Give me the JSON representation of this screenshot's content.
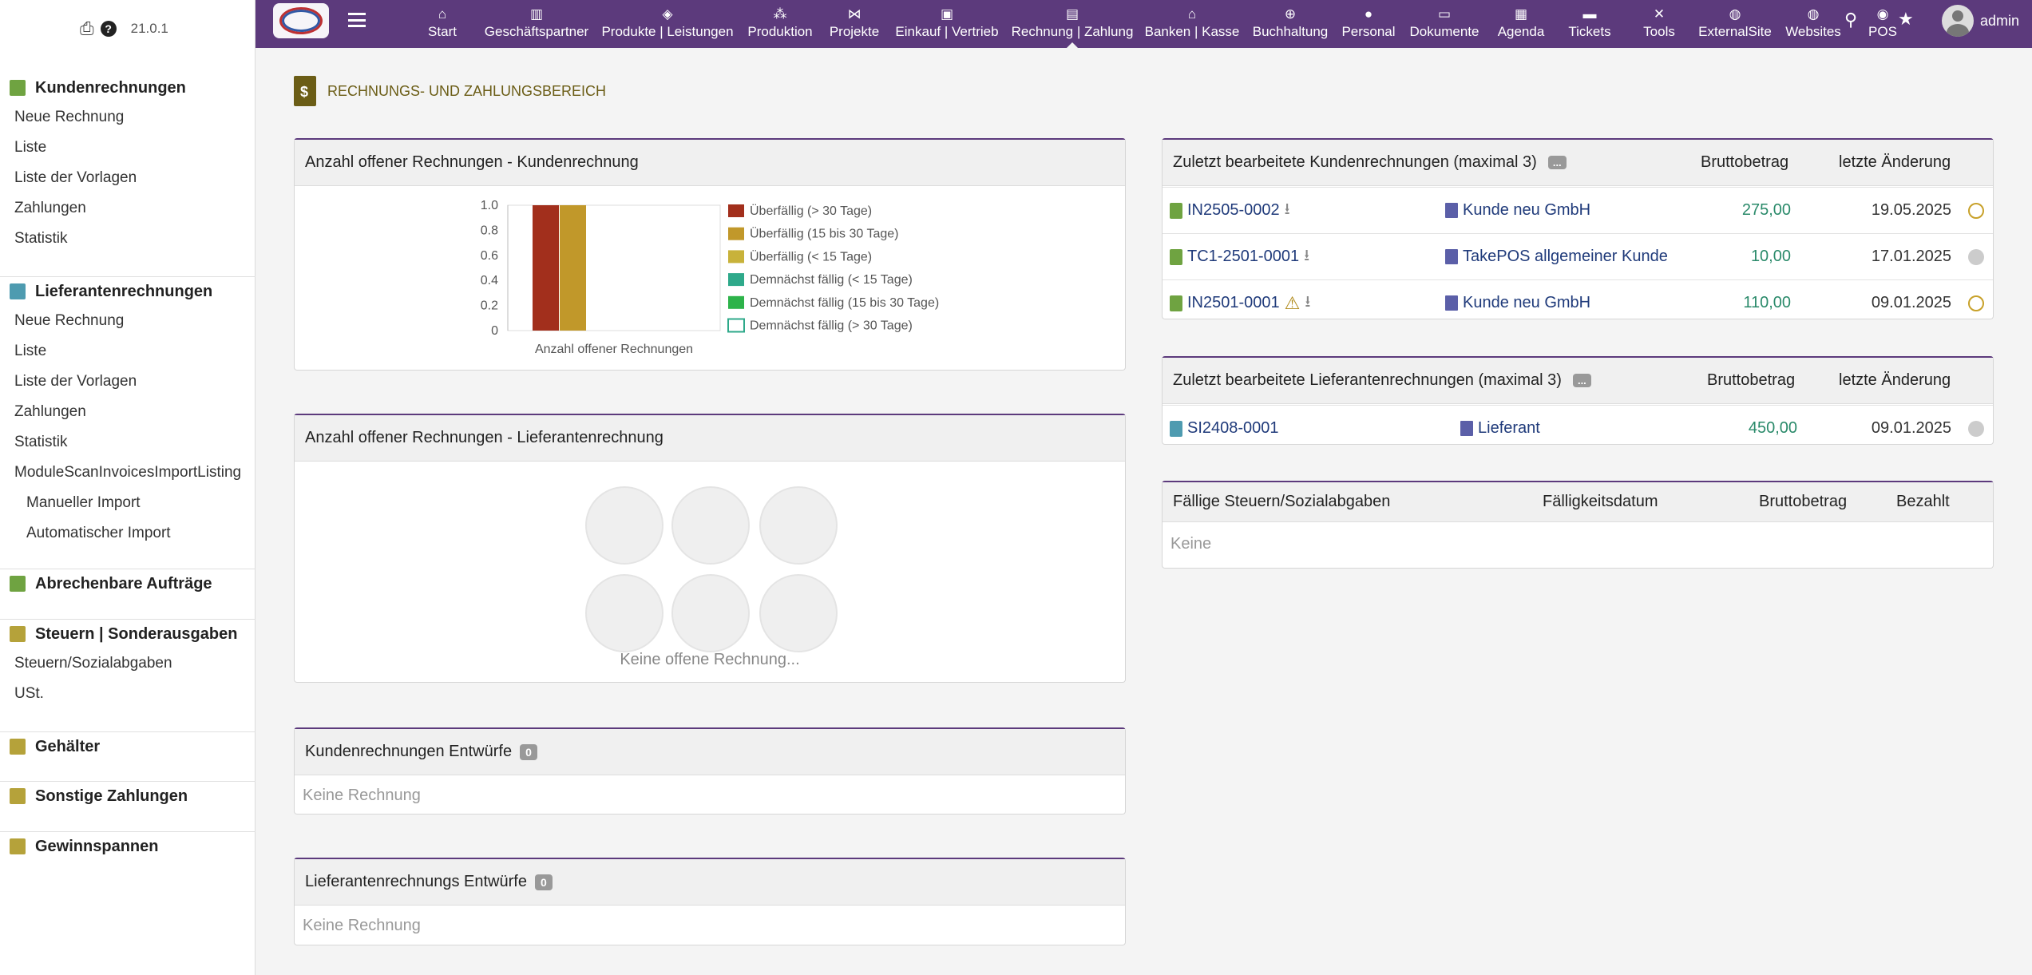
{
  "app": {
    "version": "21.0.1",
    "user": "admin"
  },
  "colors": {
    "topbar": "#5c3a7c",
    "accent": "#6b5d16",
    "amount": "#2a8a6a"
  },
  "topnav": [
    {
      "label": "Start",
      "icon": "home-icon",
      "glyph": "⌂"
    },
    {
      "label": "Geschäftspartner",
      "icon": "building-icon",
      "glyph": "▥"
    },
    {
      "label": "Produkte | Leistungen",
      "icon": "cube-icon",
      "glyph": "◈"
    },
    {
      "label": "Produktion",
      "icon": "cubes-icon",
      "glyph": "⁂"
    },
    {
      "label": "Projekte",
      "icon": "project-diagram-icon",
      "glyph": "⋈"
    },
    {
      "label": "Einkauf | Vertrieb",
      "icon": "suitcase-icon",
      "glyph": "▣"
    },
    {
      "label": "Rechnung | Zahlung",
      "icon": "invoice-icon",
      "glyph": "▤"
    },
    {
      "label": "Banken | Kasse",
      "icon": "bank-icon",
      "glyph": "⌂"
    },
    {
      "label": "Buchhaltung",
      "icon": "search-dollar-icon",
      "glyph": "⊕"
    },
    {
      "label": "Personal",
      "icon": "user-icon",
      "glyph": "●"
    },
    {
      "label": "Dokumente",
      "icon": "folder-icon",
      "glyph": "▭"
    },
    {
      "label": "Agenda",
      "icon": "calendar-icon",
      "glyph": "▦"
    },
    {
      "label": "Tickets",
      "icon": "ticket-icon",
      "glyph": "▬"
    },
    {
      "label": "Tools",
      "icon": "tools-icon",
      "glyph": "✕"
    },
    {
      "label": "ExternalSite",
      "icon": "globe-icon",
      "glyph": "◍"
    },
    {
      "label": "Websites",
      "icon": "globe-icon",
      "glyph": "◍"
    },
    {
      "label": "POS",
      "icon": "cash-register-icon",
      "glyph": "◉"
    }
  ],
  "sidebar": {
    "sections": [
      {
        "title": "Kundenrechnungen",
        "icon": "invoice-icon",
        "color": "#6fa341",
        "items": [
          "Neue Rechnung",
          "Liste",
          "Liste der Vorlagen",
          "Zahlungen",
          "Statistik"
        ]
      },
      {
        "title": "Lieferantenrechnungen",
        "icon": "supplier-invoice-icon",
        "color": "#4e9bb0",
        "items": [
          "Neue Rechnung",
          "Liste",
          "Liste der Vorlagen",
          "Zahlungen",
          "Statistik",
          "ModuleScanInvoicesImportListing",
          "Manueller Import",
          "Automatischer Import"
        ]
      },
      {
        "title": "Abrechenbare Aufträge",
        "icon": "order-icon",
        "color": "#6fa341",
        "items": []
      },
      {
        "title": "Steuern | Sonderausgaben",
        "icon": "money-icon",
        "color": "#b5a23a",
        "items": [
          "Steuern/Sozialabgaben",
          "USt."
        ]
      },
      {
        "title": "Gehälter",
        "icon": "wallet-icon",
        "color": "#b5a23a",
        "items": []
      },
      {
        "title": "Sonstige Zahlungen",
        "icon": "money-icon",
        "color": "#b5a23a",
        "items": []
      },
      {
        "title": "Gewinnspannen",
        "icon": "calculator-icon",
        "color": "#b5a23a",
        "items": []
      }
    ]
  },
  "page": {
    "title": "RECHNUNGS- UND ZAHLUNGSBEREICH"
  },
  "boxes": {
    "customer_open": {
      "title": "Anzahl offener Rechnungen - Kundenrechnung"
    },
    "supplier_open": {
      "title": "Anzahl offener Rechnungen - Lieferantenrechnung",
      "empty": "Keine offene Rechnung..."
    },
    "customer_drafts": {
      "title": "Kundenrechnungen Entwürfe",
      "count": "0",
      "empty": "Keine Rechnung"
    },
    "supplier_drafts": {
      "title": "Lieferantenrechnungs Entwürfe",
      "count": "0",
      "empty": "Keine Rechnung"
    },
    "recent_customer": {
      "title": "Zuletzt bearbeitete Kundenrechnungen (maximal 3)",
      "more": "...",
      "col_amount": "Bruttobetrag",
      "col_changed": "letzte Änderung",
      "rows": [
        {
          "ref": "IN2505-0002",
          "warn": false,
          "company": "Kunde neu GmbH",
          "amount": "275,00",
          "date": "19.05.2025",
          "status": "unpaid"
        },
        {
          "ref": "TC1-2501-0001",
          "warn": false,
          "company": "TakePOS allgemeiner Kunde",
          "amount": "10,00",
          "date": "17.01.2025",
          "status": "paid"
        },
        {
          "ref": "IN2501-0001",
          "warn": true,
          "company": "Kunde neu GmbH",
          "amount": "110,00",
          "date": "09.01.2025",
          "status": "unpaid"
        }
      ]
    },
    "recent_supplier": {
      "title": "Zuletzt bearbeitete Lieferantenrechnungen (maximal 3)",
      "more": "...",
      "col_amount": "Bruttobetrag",
      "col_changed": "letzte Änderung",
      "rows": [
        {
          "ref": "SI2408-0001",
          "company": "Lieferant",
          "amount": "450,00",
          "date": "09.01.2025",
          "status": "paid"
        }
      ]
    },
    "taxes": {
      "col_title": "Fällige Steuern/Sozialabgaben",
      "col_due": "Fälligkeitsdatum",
      "col_amount": "Bruttobetrag",
      "col_paid": "Bezahlt",
      "empty": "Keine"
    }
  },
  "chart_data": {
    "type": "bar",
    "xlabel": "Anzahl offener Rechnungen",
    "ylim": [
      0,
      1.0
    ],
    "yticks": [
      "1.0",
      "0.8",
      "0.6",
      "0.4",
      "0.2",
      "0"
    ],
    "series": [
      {
        "name": "Überfällig (> 30 Tage)",
        "color": "#a22f1c",
        "values": [
          1
        ]
      },
      {
        "name": "Überfällig (15 bis 30 Tage)",
        "color": "#c1982a",
        "values": [
          1
        ]
      },
      {
        "name": "Überfällig (< 15 Tage)",
        "color": "#c8b23a",
        "values": [
          0
        ]
      },
      {
        "name": "Demnächst fällig (< 15 Tage)",
        "color": "#2ea98a",
        "values": [
          0
        ]
      },
      {
        "name": "Demnächst fällig (15 bis 30 Tage)",
        "color": "#2db34a",
        "values": [
          0
        ]
      },
      {
        "name": "Demnächst fällig (> 30 Tage)",
        "color": "#ffffff",
        "values": [
          0
        ]
      }
    ]
  }
}
